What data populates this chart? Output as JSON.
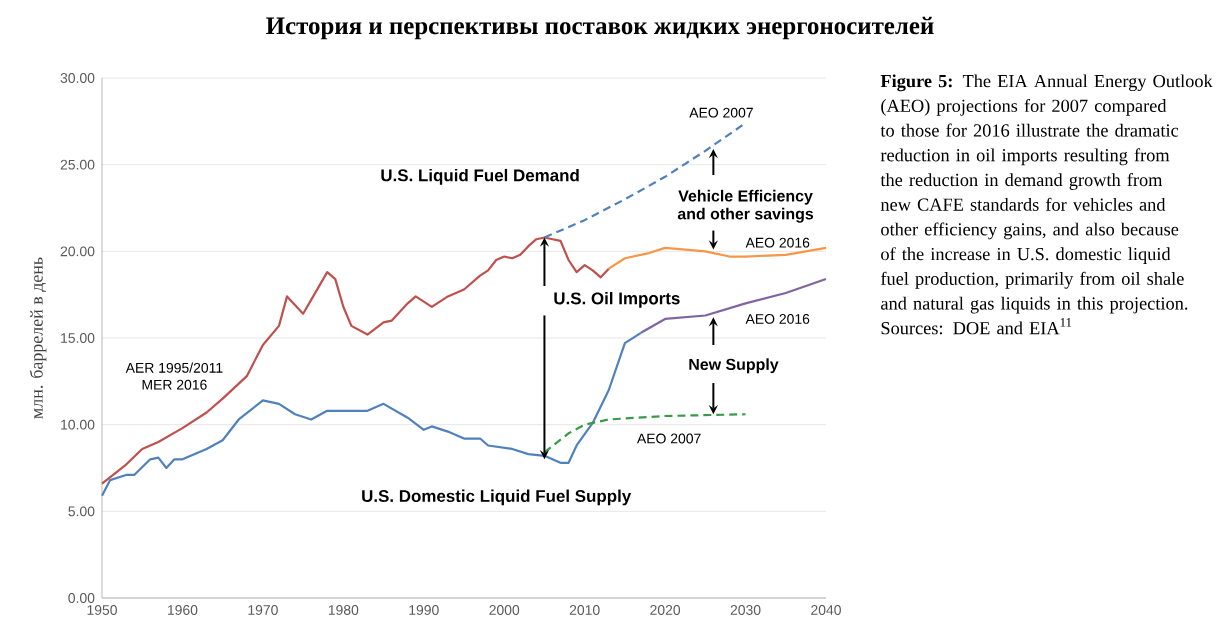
{
  "chart_data": {
    "type": "line",
    "title": "История и перспективы поставок жидких энергоносителей",
    "ylabel": "млн. баррелей в день",
    "xlim": [
      1950,
      2040
    ],
    "xticks": [
      1950,
      1960,
      1970,
      1980,
      1990,
      2000,
      2010,
      2020,
      2030,
      2040
    ],
    "ylim": [
      0,
      30
    ],
    "yticks": [
      {
        "value": 0,
        "label": "0.00"
      },
      {
        "value": 5,
        "label": "5.00"
      },
      {
        "value": 10,
        "label": "10.00"
      },
      {
        "value": 15,
        "label": "15.00"
      },
      {
        "value": 20,
        "label": "20.00"
      },
      {
        "value": 25,
        "label": "25.00"
      },
      {
        "value": 30,
        "label": "30.00"
      }
    ],
    "grid": "y",
    "marker": "none",
    "series": [
      {
        "color": "#c0504d",
        "line_style": "solid",
        "x": [
          1950,
          1953,
          1955,
          1957,
          1960,
          1963,
          1965,
          1968,
          1970,
          1972,
          1973,
          1975,
          1976,
          1978,
          1979,
          1980,
          1981,
          1983,
          1985,
          1986,
          1988,
          1989,
          1991,
          1993,
          1995,
          1997,
          1998,
          1999,
          2000,
          2001,
          2002,
          2003,
          2004,
          2005,
          2006,
          2007,
          2008,
          2009,
          2010,
          2011,
          2012,
          2013
        ],
        "values": [
          6.6,
          7.7,
          8.6,
          9.0,
          9.8,
          10.7,
          11.5,
          12.8,
          14.6,
          15.7,
          17.4,
          16.4,
          17.2,
          18.8,
          18.4,
          16.8,
          15.7,
          15.2,
          15.9,
          16.0,
          17.0,
          17.4,
          16.8,
          17.4,
          17.8,
          18.6,
          18.9,
          19.5,
          19.7,
          19.6,
          19.8,
          20.3,
          20.7,
          20.8,
          20.7,
          20.6,
          19.5,
          18.8,
          19.2,
          18.9,
          18.5,
          19.0
        ]
      },
      {
        "color": "#f79646",
        "line_style": "solid",
        "x": [
          2013,
          2015,
          2018,
          2020,
          2025,
          2028,
          2030,
          2035,
          2040
        ],
        "values": [
          19.0,
          19.6,
          19.9,
          20.2,
          20.0,
          19.7,
          19.7,
          19.8,
          20.2
        ]
      },
      {
        "color": "#4f81bd",
        "line_style": "dashed",
        "x": [
          2005,
          2010,
          2015,
          2020,
          2025,
          2030
        ],
        "values": [
          20.8,
          21.8,
          23.0,
          24.3,
          25.8,
          27.4
        ]
      },
      {
        "color": "#4f81bd",
        "line_style": "solid",
        "x": [
          1950,
          1951,
          1953,
          1954,
          1956,
          1957,
          1958,
          1959,
          1960,
          1963,
          1965,
          1967,
          1970,
          1972,
          1974,
          1976,
          1978,
          1980,
          1983,
          1985,
          1988,
          1990,
          1991,
          1993,
          1995,
          1997,
          1998,
          2001,
          2003,
          2005,
          2007,
          2008,
          2009,
          2011,
          2013,
          2015,
          2017
        ],
        "values": [
          5.9,
          6.8,
          7.1,
          7.1,
          8.0,
          8.1,
          7.5,
          8.0,
          8.0,
          8.6,
          9.1,
          10.3,
          11.4,
          11.2,
          10.6,
          10.3,
          10.8,
          10.8,
          10.8,
          11.2,
          10.4,
          9.7,
          9.9,
          9.6,
          9.2,
          9.2,
          8.8,
          8.6,
          8.3,
          8.2,
          7.8,
          7.8,
          8.8,
          10.1,
          12.0,
          14.7,
          15.3
        ]
      },
      {
        "color": "#8064a2",
        "line_style": "solid",
        "x": [
          2017,
          2020,
          2025,
          2030,
          2035,
          2040
        ],
        "values": [
          15.3,
          16.1,
          16.3,
          17.0,
          17.6,
          18.4
        ]
      },
      {
        "color": "#3a9a4a",
        "line_style": "dashed",
        "x": [
          2005,
          2008,
          2010,
          2013,
          2020,
          2030
        ],
        "values": [
          8.4,
          9.5,
          10.0,
          10.3,
          10.5,
          10.6
        ]
      }
    ],
    "annotations": [
      "U.S. Liquid Fuel Demand",
      "AEO 2007",
      "Vehicle Efficiency and other savings",
      "AEO 2016",
      {
        "text": "U.S. Oil Imports",
        "x": 2005,
        "y": 20.8
      },
      "AEO 2016",
      "New Supply",
      "AEO 2007",
      "U.S. Domestic Liquid Fuel Supply",
      "AER 1995/2011 MER 2016",
      "**Figure 5:** The EIA Annual Energy Outlook (AEO) projections for 2007 compared to those for 2016 illustrate the dramatic reduction in oil imports resulting from the reduction in demand growth from new CAFE standards for vehicles and other efficiency gains, and also because of the increase in U.S. domestic liquid fuel production, primarily from oil shale and natural gas liquids in this projection. Sources: DOE and EIA$^{11}$"
    ]
  }
}
